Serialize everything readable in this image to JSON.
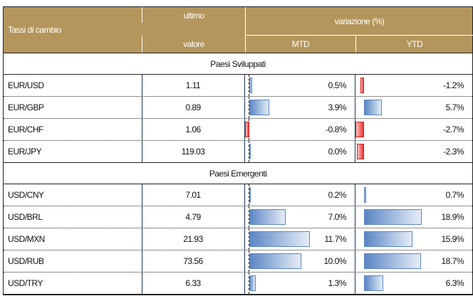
{
  "header": {
    "col1": "Tassi di cambio",
    "col2_line1": "ultimo",
    "col2_line2": "valore",
    "group": "variazione (%)",
    "mtd": "MTD",
    "ytd": "YTD"
  },
  "sections": [
    {
      "title": "Paesi Sviluppati",
      "rows": [
        {
          "pair": "EUR/USD",
          "last": "1.11",
          "mtd": 0.5,
          "mtd_label": "0.5%",
          "ytd": -1.2,
          "ytd_label": "-1.2%"
        },
        {
          "pair": "EUR/GBP",
          "last": "0.89",
          "mtd": 3.9,
          "mtd_label": "3.9%",
          "ytd": 5.7,
          "ytd_label": "5.7%"
        },
        {
          "pair": "EUR/CHF",
          "last": "1.06",
          "mtd": -0.8,
          "mtd_label": "-0.8%",
          "ytd": -2.7,
          "ytd_label": "-2.7%"
        },
        {
          "pair": "EUR/JPY",
          "last": "119.03",
          "mtd": 0.0,
          "mtd_label": "0.0%",
          "ytd": -2.3,
          "ytd_label": "-2.3%"
        }
      ]
    },
    {
      "title": "Paesi Emergenti",
      "rows": [
        {
          "pair": "USD/CNY",
          "last": "7.01",
          "mtd": 0.2,
          "mtd_label": "0.2%",
          "ytd": 0.7,
          "ytd_label": "0.7%"
        },
        {
          "pair": "USD/BRL",
          "last": "4.79",
          "mtd": 7.0,
          "mtd_label": "7.0%",
          "ytd": 18.9,
          "ytd_label": "18.9%"
        },
        {
          "pair": "USD/MXN",
          "last": "21.93",
          "mtd": 11.7,
          "mtd_label": "11.7%",
          "ytd": 15.9,
          "ytd_label": "15.9%"
        },
        {
          "pair": "USD/RUB",
          "last": "73.56",
          "mtd": 10.0,
          "mtd_label": "10.0%",
          "ytd": 18.7,
          "ytd_label": "18.7%"
        },
        {
          "pair": "USD/TRY",
          "last": "6.33",
          "mtd": 1.3,
          "mtd_label": "1.3%",
          "ytd": 6.3,
          "ytd_label": "6.3%"
        }
      ]
    }
  ],
  "colors": {
    "header": "#b4965c",
    "positive": "#5b86c4",
    "negative": "#e33333"
  }
}
